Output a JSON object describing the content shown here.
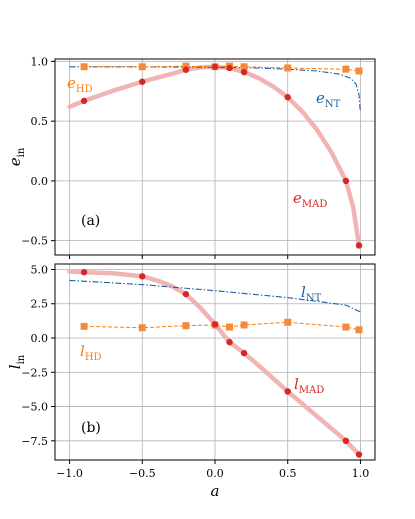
{
  "chart_data": [
    {
      "type": "line",
      "panel_label": "(a)",
      "xlabel": "a",
      "ylabel": "e",
      "ylabel_sub": "in",
      "xlim": [
        -1.1,
        1.1
      ],
      "ylim": [
        -0.62,
        1.02
      ],
      "grid": true,
      "x_ticks": [
        -1.0,
        -0.5,
        0.0,
        0.5,
        1.0
      ],
      "x_tick_labels": [
        "−1.0",
        "−0.5",
        "0.0",
        "0.5",
        "1.0"
      ],
      "y_ticks": [
        -0.5,
        0.0,
        0.5,
        1.0
      ],
      "y_tick_labels": [
        "−0.5",
        "0.0",
        "0.5",
        "1.0"
      ],
      "colors": {
        "MAD": "#d62728",
        "MAD_band": "#f0b4b4",
        "HD": "#ff7f0e",
        "HD_marker": "#f58a3c",
        "NT": "#1f5fa6"
      },
      "series": [
        {
          "key": "HD",
          "label": "e",
          "label_sub": "HD",
          "label_pos": "top-left",
          "x": [
            -0.9,
            -0.5,
            -0.2,
            0.0,
            0.1,
            0.2,
            0.5,
            0.9,
            0.99
          ],
          "values": [
            0.955,
            0.955,
            0.96,
            0.955,
            0.96,
            0.955,
            0.945,
            0.935,
            0.92
          ]
        },
        {
          "key": "NT",
          "label": "e",
          "label_sub": "NT",
          "label_pos": "right",
          "x": [
            -1.0,
            -0.5,
            0.0,
            0.3,
            0.5,
            0.7,
            0.85,
            0.93,
            0.97,
            0.99,
            0.998
          ],
          "values": [
            0.955,
            0.955,
            0.95,
            0.945,
            0.935,
            0.92,
            0.895,
            0.86,
            0.81,
            0.72,
            0.59
          ]
        },
        {
          "key": "MAD",
          "label": "e",
          "label_sub": "MAD",
          "label_pos": "lower-right",
          "x": [
            -0.9,
            -0.5,
            -0.2,
            0.0,
            0.1,
            0.2,
            0.5,
            0.9,
            0.99
          ],
          "values": [
            0.67,
            0.83,
            0.93,
            0.955,
            0.945,
            0.91,
            0.7,
            0.0,
            -0.54
          ],
          "curve_x": [
            -1.0,
            -0.9,
            -0.7,
            -0.5,
            -0.3,
            -0.2,
            -0.1,
            0.0,
            0.1,
            0.2,
            0.3,
            0.4,
            0.5,
            0.6,
            0.7,
            0.8,
            0.9,
            0.95,
            0.99
          ],
          "curve_y": [
            0.62,
            0.67,
            0.755,
            0.83,
            0.895,
            0.93,
            0.95,
            0.955,
            0.945,
            0.91,
            0.86,
            0.79,
            0.7,
            0.58,
            0.43,
            0.24,
            0.0,
            -0.22,
            -0.54
          ]
        }
      ]
    },
    {
      "type": "line",
      "panel_label": "(b)",
      "xlabel": "a",
      "ylabel": "l",
      "ylabel_sub": "in",
      "xlim": [
        -1.1,
        1.1
      ],
      "ylim": [
        -8.9,
        5.4
      ],
      "grid": true,
      "x_ticks": [
        -1.0,
        -0.5,
        0.0,
        0.5,
        1.0
      ],
      "x_tick_labels": [
        "−1.0",
        "−0.5",
        "0.0",
        "0.5",
        "1.0"
      ],
      "y_ticks": [
        -7.5,
        -5.0,
        -2.5,
        0.0,
        2.5,
        5.0
      ],
      "y_tick_labels": [
        "−7.5",
        "−5.0",
        "−2.5",
        "0.0",
        "2.5",
        "5.0"
      ],
      "colors": {
        "MAD": "#d62728",
        "MAD_band": "#f0b4b4",
        "HD": "#ff7f0e",
        "HD_marker": "#f58a3c",
        "NT": "#1f5fa6"
      },
      "series": [
        {
          "key": "NT",
          "label": "l",
          "label_sub": "NT",
          "label_pos": "upper-right",
          "x": [
            -1.0,
            -0.5,
            0.0,
            0.5,
            0.9,
            1.0
          ],
          "values": [
            4.2,
            3.9,
            3.45,
            2.95,
            2.4,
            1.9
          ]
        },
        {
          "key": "HD",
          "label": "l",
          "label_sub": "HD",
          "label_pos": "left",
          "x": [
            -0.9,
            -0.5,
            -0.2,
            0.0,
            0.1,
            0.2,
            0.5,
            0.9,
            0.99
          ],
          "values": [
            0.85,
            0.75,
            0.9,
            0.95,
            0.8,
            0.95,
            1.15,
            0.8,
            0.6
          ]
        },
        {
          "key": "MAD",
          "label": "l",
          "label_sub": "MAD",
          "label_pos": "lower-right",
          "x": [
            -0.9,
            -0.5,
            -0.2,
            0.0,
            0.1,
            0.2,
            0.5,
            0.9,
            0.99
          ],
          "values": [
            4.8,
            4.5,
            3.2,
            1.0,
            -0.3,
            -1.1,
            -3.9,
            -7.5,
            -8.5
          ],
          "curve_x": [
            -1.0,
            -0.9,
            -0.7,
            -0.5,
            -0.4,
            -0.3,
            -0.2,
            -0.1,
            0.0,
            0.1,
            0.2,
            0.3,
            0.4,
            0.5,
            0.6,
            0.7,
            0.8,
            0.9,
            0.99
          ],
          "curve_y": [
            4.85,
            4.8,
            4.72,
            4.5,
            4.2,
            3.8,
            3.2,
            2.2,
            1.0,
            -0.3,
            -1.1,
            -2.0,
            -2.95,
            -3.9,
            -4.8,
            -5.7,
            -6.6,
            -7.5,
            -8.5
          ]
        }
      ]
    }
  ]
}
